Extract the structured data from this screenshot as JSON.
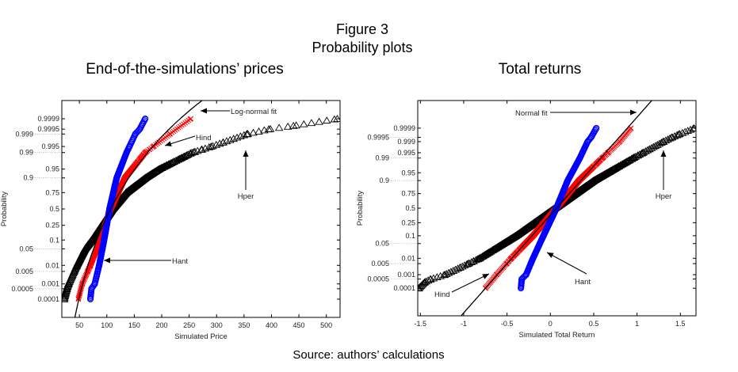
{
  "figure": {
    "title": "Figure 3",
    "subtitle": "Probability plots",
    "source": "Source: authors’ calculations"
  },
  "colors": {
    "Hant": "#0000ff",
    "Hind": "#ff0000",
    "Hper": "#000000",
    "fit": "#000000"
  },
  "chart_data": [
    {
      "type": "scatter",
      "subtitle": "End-of-the-simulations’ prices",
      "xlabel": "Simulated Price",
      "ylabel": "Probability",
      "y_scale": "normal-probability",
      "xlim": [
        18,
        525
      ],
      "xticks": [
        50,
        100,
        150,
        200,
        250,
        300,
        350,
        400,
        450,
        500
      ],
      "yticks": [
        0.0001,
        0.0005,
        0.001,
        0.005,
        0.01,
        0.05,
        0.1,
        0.25,
        0.5,
        0.75,
        0.9,
        0.95,
        0.99,
        0.995,
        0.999,
        0.9995,
        0.9999
      ],
      "grid": false,
      "series": [
        {
          "name": "Hper",
          "marker": "triangle",
          "quantiles": [
            [
              0.0001,
              22
            ],
            [
              0.0005,
              27
            ],
            [
              0.001,
              30
            ],
            [
              0.01,
              45
            ],
            [
              0.05,
              60
            ],
            [
              0.1,
              72
            ],
            [
              0.25,
              90
            ],
            [
              0.5,
              110
            ],
            [
              0.75,
              135
            ],
            [
              0.9,
              170
            ],
            [
              0.95,
              195
            ],
            [
              0.99,
              255
            ],
            [
              0.995,
              290
            ],
            [
              0.999,
              355
            ],
            [
              0.9995,
              395
            ],
            [
              0.9997,
              440
            ],
            [
              0.9999,
              520
            ]
          ]
        },
        {
          "name": "Hind",
          "marker": "x",
          "quantiles": [
            [
              0.0001,
              48
            ],
            [
              0.001,
              55
            ],
            [
              0.01,
              70
            ],
            [
              0.1,
              88
            ],
            [
              0.5,
              107
            ],
            [
              0.9,
              133
            ],
            [
              0.99,
              170
            ],
            [
              0.995,
              185
            ],
            [
              0.999,
              215
            ],
            [
              0.9999,
              253
            ]
          ]
        },
        {
          "name": "Hant",
          "marker": "circle",
          "quantiles": [
            [
              0.0001,
              70
            ],
            [
              0.0005,
              72
            ],
            [
              0.001,
              78
            ],
            [
              0.01,
              86
            ],
            [
              0.1,
              95
            ],
            [
              0.5,
              105
            ],
            [
              0.9,
              118
            ],
            [
              0.99,
              136
            ],
            [
              0.999,
              152
            ],
            [
              0.9995,
              160
            ],
            [
              0.9999,
              170
            ]
          ]
        }
      ],
      "fit": {
        "name": "Log-normal fit",
        "distribution": "lognormal",
        "median": 107,
        "sigma": 0.21
      },
      "annotations": [
        "Log-normal fit",
        "Hind",
        "Hper",
        "Hant"
      ]
    },
    {
      "type": "scatter",
      "subtitle": "Total returns",
      "xlabel": "Simulated Total Return",
      "ylabel": "Probability",
      "y_scale": "normal-probability",
      "xlim": [
        -1.53,
        1.68
      ],
      "xticks": [
        -1.5,
        -1,
        -0.5,
        0,
        0.5,
        1,
        1.5
      ],
      "yticks": [
        0.0001,
        0.0005,
        0.001,
        0.005,
        0.01,
        0.05,
        0.1,
        0.25,
        0.5,
        0.75,
        0.9,
        0.95,
        0.99,
        0.995,
        0.999,
        0.9995,
        0.9999
      ],
      "grid": false,
      "series": [
        {
          "name": "Hper",
          "marker": "triangle",
          "quantiles": [
            [
              0.0001,
              -1.52
            ],
            [
              0.0003,
              -1.45
            ],
            [
              0.0005,
              -1.38
            ],
            [
              0.001,
              -1.22
            ],
            [
              0.01,
              -0.82
            ],
            [
              0.1,
              -0.4
            ],
            [
              0.5,
              0.05
            ],
            [
              0.9,
              0.5
            ],
            [
              0.99,
              0.95
            ],
            [
              0.999,
              1.3
            ],
            [
              0.9995,
              1.4
            ],
            [
              0.9997,
              1.48
            ],
            [
              0.9999,
              1.66
            ]
          ]
        },
        {
          "name": "Hind",
          "marker": "x",
          "quantiles": [
            [
              0.0001,
              -0.75
            ],
            [
              0.001,
              -0.62
            ],
            [
              0.01,
              -0.45
            ],
            [
              0.1,
              -0.2
            ],
            [
              0.5,
              0.07
            ],
            [
              0.9,
              0.33
            ],
            [
              0.99,
              0.6
            ],
            [
              0.999,
              0.8
            ],
            [
              0.9999,
              0.93
            ]
          ]
        },
        {
          "name": "Hant",
          "marker": "circle",
          "quantiles": [
            [
              0.0001,
              -0.34
            ],
            [
              0.0005,
              -0.33
            ],
            [
              0.001,
              -0.28
            ],
            [
              0.01,
              -0.2
            ],
            [
              0.1,
              -0.08
            ],
            [
              0.5,
              0.07
            ],
            [
              0.9,
              0.2
            ],
            [
              0.99,
              0.34
            ],
            [
              0.999,
              0.43
            ],
            [
              0.9995,
              0.47
            ],
            [
              0.9999,
              0.53
            ]
          ]
        }
      ],
      "fit": {
        "name": "Normal fit",
        "distribution": "normal",
        "mean": 0.07,
        "sd": 0.22
      },
      "annotations": [
        "Normal fit",
        "Hper",
        "Hant",
        "Hind"
      ]
    }
  ]
}
